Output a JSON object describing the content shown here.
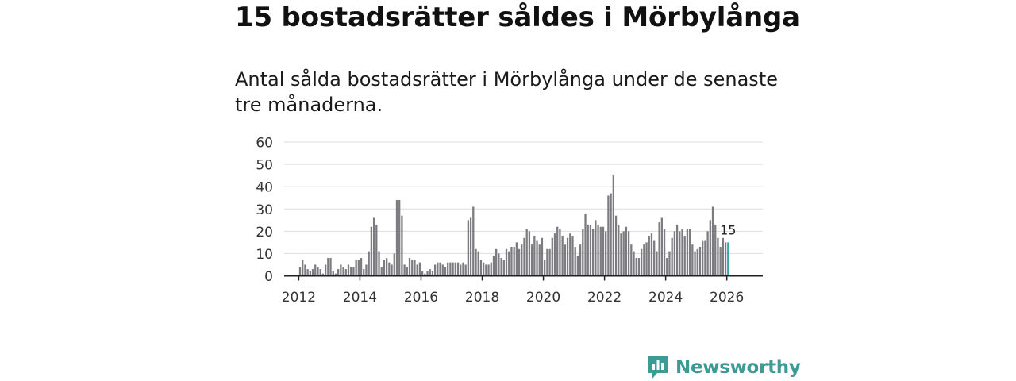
{
  "header": {
    "title": "15 bostadsrätter såldes i Mörbylånga",
    "subtitle": "Antal sålda bostadsrätter i Mörbylånga under de senaste tre månaderna."
  },
  "brand": {
    "name": "Newsworthy",
    "icon": "newsworthy-logo-icon",
    "color": "#3d9a94"
  },
  "colors": {
    "bar": "#7c7c80",
    "highlight": "#2fa8a0",
    "grid": "#dddddd",
    "axis": "#222222"
  },
  "chart_data": {
    "type": "bar",
    "title": "15 bostadsrätter såldes i Mörbylånga",
    "subtitle": "Antal sålda bostadsrätter i Mörbylånga under de senaste tre månaderna.",
    "xlabel": "",
    "ylabel": "",
    "ylim": [
      0,
      60
    ],
    "yticks": [
      "0",
      "10",
      "20",
      "30",
      "40",
      "50",
      "60"
    ],
    "xticks": [
      "2012",
      "2014",
      "2016",
      "2018",
      "2020",
      "2022",
      "2024",
      "2026"
    ],
    "start": "2012-01",
    "frequency": "monthly",
    "values": [
      4,
      7,
      5,
      3,
      2,
      3,
      5,
      4,
      3,
      1,
      5,
      8,
      8,
      2,
      1,
      3,
      5,
      4,
      3,
      5,
      4,
      4,
      7,
      7,
      8,
      3,
      5,
      11,
      22,
      26,
      23,
      11,
      4,
      7,
      8,
      6,
      5,
      10,
      34,
      34,
      27,
      5,
      4,
      8,
      7,
      7,
      5,
      6,
      2,
      1,
      2,
      3,
      2,
      5,
      6,
      6,
      5,
      4,
      6,
      6,
      6,
      6,
      6,
      5,
      6,
      5,
      25,
      26,
      31,
      12,
      11,
      7,
      6,
      5,
      5,
      6,
      9,
      12,
      10,
      8,
      7,
      12,
      11,
      13,
      13,
      15,
      12,
      14,
      17,
      21,
      20,
      14,
      18,
      16,
      14,
      17,
      7,
      12,
      12,
      17,
      19,
      22,
      21,
      18,
      14,
      17,
      19,
      18,
      13,
      9,
      14,
      21,
      28,
      23,
      23,
      21,
      25,
      23,
      22,
      22,
      20,
      36,
      37,
      45,
      27,
      23,
      19,
      20,
      22,
      20,
      14,
      11,
      8,
      8,
      12,
      14,
      15,
      18,
      19,
      16,
      11,
      24,
      26,
      21,
      8,
      11,
      17,
      20,
      23,
      20,
      21,
      18,
      21,
      21,
      14,
      11,
      12,
      13,
      16,
      16,
      20,
      25,
      31,
      23,
      17,
      13,
      17,
      15,
      15
    ],
    "highlight_last": true,
    "last_label": "15"
  }
}
